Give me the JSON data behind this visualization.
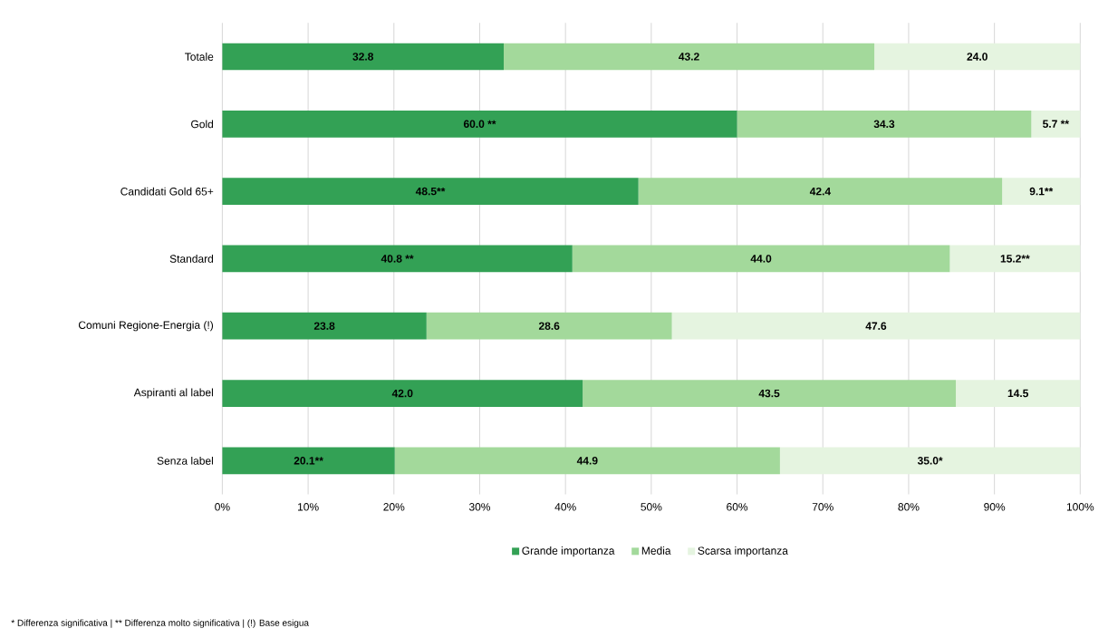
{
  "chart_data": {
    "type": "bar",
    "orientation": "horizontal",
    "stacked": true,
    "categories": [
      "Totale",
      "Gold",
      "Candidati Gold 65+",
      "Standard",
      "Comuni Regione-Energia (!)",
      "Aspiranti al label",
      "Senza label"
    ],
    "series": [
      {
        "name": "Grande importanza",
        "color": "#33a155",
        "values": [
          32.8,
          60.0,
          48.5,
          40.8,
          23.8,
          42.0,
          20.1
        ],
        "value_labels": [
          "32.8",
          "60.0 **",
          "48.5**",
          "40.8 **",
          "23.8",
          "42.0",
          "20.1**"
        ]
      },
      {
        "name": "Media",
        "color": "#a3d99b",
        "values": [
          43.2,
          34.3,
          42.4,
          44.0,
          28.6,
          43.5,
          44.9
        ],
        "value_labels": [
          "43.2",
          "34.3",
          "42.4",
          "44.0",
          "28.6",
          "43.5",
          "44.9"
        ]
      },
      {
        "name": "Scarsa importanza",
        "color": "#e5f4e0",
        "values": [
          24.0,
          5.7,
          9.1,
          15.2,
          47.6,
          14.5,
          35.0
        ],
        "value_labels": [
          "24.0",
          "5.7 **",
          "9.1**",
          "15.2**",
          "47.6",
          "14.5",
          "35.0*"
        ]
      }
    ],
    "xlim": [
      0,
      100
    ],
    "xticks": [
      {
        "value": 0,
        "label": "0%"
      },
      {
        "value": 10,
        "label": "10%"
      },
      {
        "value": 20,
        "label": "20%"
      },
      {
        "value": 30,
        "label": "30%"
      },
      {
        "value": 40,
        "label": "40%"
      },
      {
        "value": 50,
        "label": "50%"
      },
      {
        "value": 60,
        "label": "60%"
      },
      {
        "value": 70,
        "label": "70%"
      },
      {
        "value": 80,
        "label": "80%"
      },
      {
        "value": 90,
        "label": "90%"
      },
      {
        "value": 100,
        "label": "100%"
      }
    ],
    "grid": "x",
    "legend": "bottom",
    "annotations": [
      "* Differenza significativa | ** Differenza molto significativa | (!) Base esigua"
    ]
  }
}
